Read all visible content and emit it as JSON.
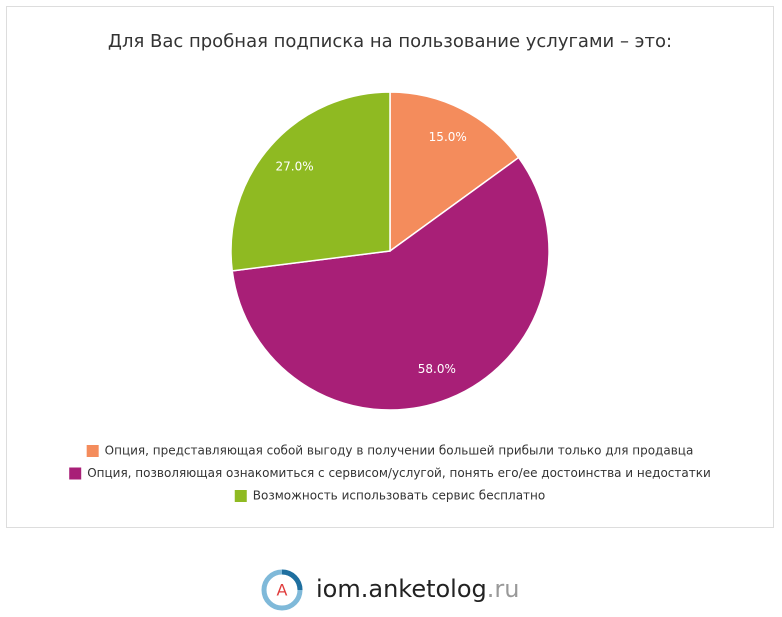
{
  "chart_data": {
    "type": "pie",
    "title": "Для Вас пробная подписка на пользование услугами – это:",
    "categories": [
      "Опция, представляющая собой выгоду в получении большей прибыли только для продавца",
      "Опция, позволяющая ознакомиться с сервисом/услугой, понять его/ее достоинства и недостатки",
      "Возможность использовать сервис бесплатно"
    ],
    "values": [
      15,
      58,
      27
    ],
    "value_labels": [
      "15.0%",
      "58.0%",
      "27.0%"
    ],
    "colors": [
      "#f48c5c",
      "#a81f77",
      "#8fba22"
    ],
    "legend": "bottom"
  },
  "footer": {
    "logo_letter": "A",
    "brand": "iom.anketolog",
    "domain": ".ru"
  }
}
